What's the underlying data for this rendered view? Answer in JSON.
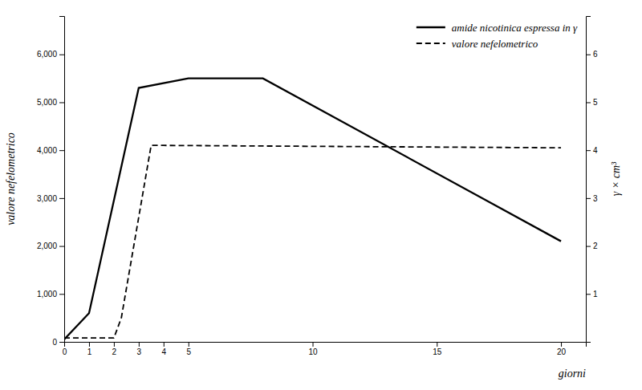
{
  "chart_data": {
    "type": "line",
    "series": [
      {
        "name": "amide nicotinica espressa in γ",
        "color": "#000000",
        "line_style": "solid",
        "x": [
          0,
          1,
          3,
          5,
          8,
          20
        ],
        "values": [
          0.05,
          0.6,
          5.3,
          5.5,
          5.5,
          2.1
        ]
      },
      {
        "name": "valore nefelometrico",
        "color": "#000000",
        "line_style": "dashed",
        "x": [
          0,
          2,
          2.3,
          3.5,
          4,
          20
        ],
        "values": [
          0.08,
          0.08,
          0.5,
          4.1,
          4.1,
          4.05
        ]
      }
    ],
    "xlabel": "giorni",
    "ylabel": "valore nefelometrico",
    "y2label": "γ × cm³",
    "xlim": [
      0,
      21
    ],
    "xticks": [
      0,
      1,
      2,
      3,
      4,
      5,
      10,
      15,
      20
    ],
    "ylim": [
      0,
      6.8
    ],
    "yticks": [
      0,
      {
        "value": 1,
        "label": "1,000"
      },
      {
        "value": 2,
        "label": "2,000"
      },
      {
        "value": 3,
        "label": "3,000"
      },
      {
        "value": 4,
        "label": "4,000"
      },
      {
        "value": 5,
        "label": "5,000"
      },
      {
        "value": 6,
        "label": "6,000"
      }
    ],
    "y2lim": [
      0,
      6.8
    ],
    "y2ticks": [
      1,
      2,
      3,
      4,
      5,
      6
    ],
    "legend": "upper right",
    "grid": false
  }
}
